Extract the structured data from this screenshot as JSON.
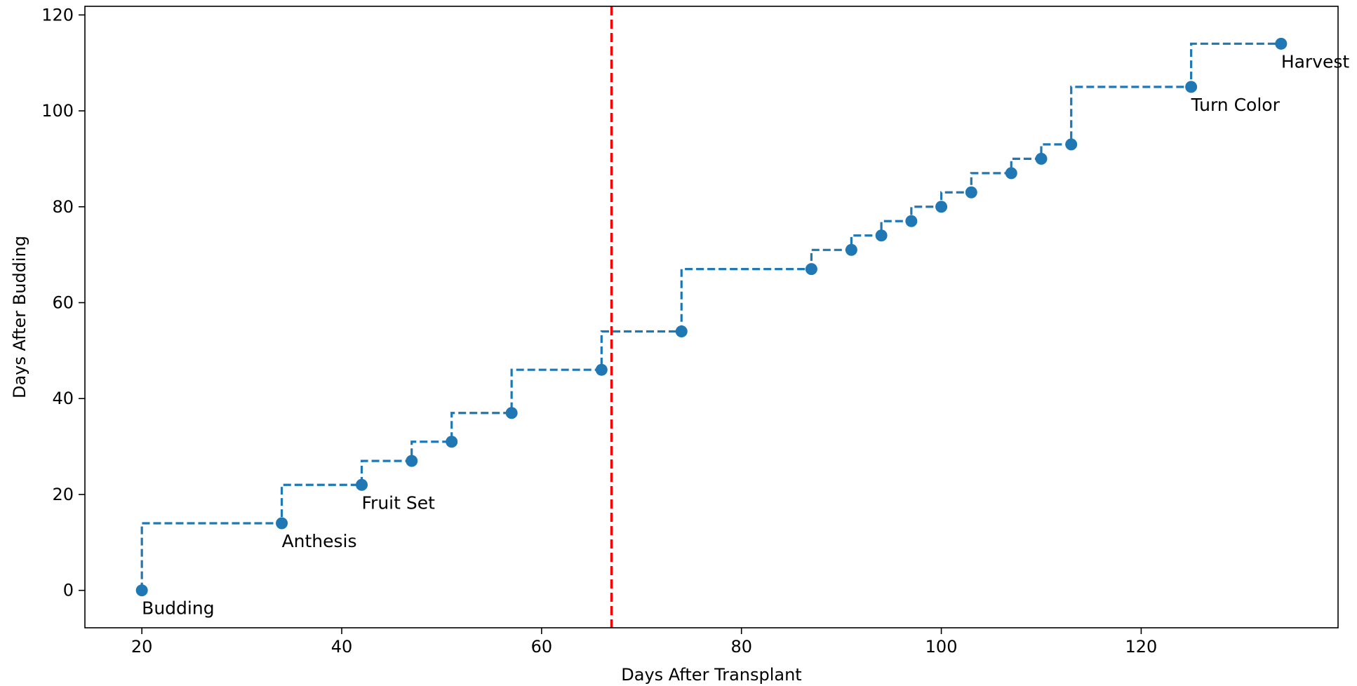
{
  "chart_data": {
    "type": "line",
    "xlabel": "Days After Transplant",
    "ylabel": "Days After Budding",
    "xlim": [
      14.3,
      139.7
    ],
    "ylim": [
      -7.8,
      121.8
    ],
    "x_ticks": [
      20,
      40,
      60,
      80,
      100,
      120
    ],
    "y_ticks": [
      0,
      20,
      40,
      60,
      80,
      100,
      120
    ],
    "grid": false,
    "series": [
      {
        "style": "steps-pre dashed with circle markers",
        "color": "#1f77b4",
        "points": [
          {
            "x": 20,
            "y": 0
          },
          {
            "x": 34,
            "y": 14
          },
          {
            "x": 42,
            "y": 22
          },
          {
            "x": 47,
            "y": 27
          },
          {
            "x": 51,
            "y": 31
          },
          {
            "x": 57,
            "y": 37
          },
          {
            "x": 66,
            "y": 46
          },
          {
            "x": 74,
            "y": 54
          },
          {
            "x": 87,
            "y": 67
          },
          {
            "x": 91,
            "y": 71
          },
          {
            "x": 94,
            "y": 74
          },
          {
            "x": 97,
            "y": 77
          },
          {
            "x": 100,
            "y": 80
          },
          {
            "x": 103,
            "y": 83
          },
          {
            "x": 107,
            "y": 87
          },
          {
            "x": 110,
            "y": 90
          },
          {
            "x": 113,
            "y": 93
          },
          {
            "x": 125,
            "y": 105
          },
          {
            "x": 134,
            "y": 114
          }
        ]
      }
    ],
    "annotations": [
      {
        "text": "Budding",
        "x": 20,
        "y": 0
      },
      {
        "text": "Anthesis",
        "x": 34,
        "y": 14
      },
      {
        "text": "Fruit Set",
        "x": 42,
        "y": 22
      },
      {
        "text": "Turn Color",
        "x": 125,
        "y": 105
      },
      {
        "text": "Harvest",
        "x": 134,
        "y": 114
      }
    ],
    "vertical_line": {
      "x": 67,
      "color": "#ff0000",
      "style": "dashed"
    }
  }
}
